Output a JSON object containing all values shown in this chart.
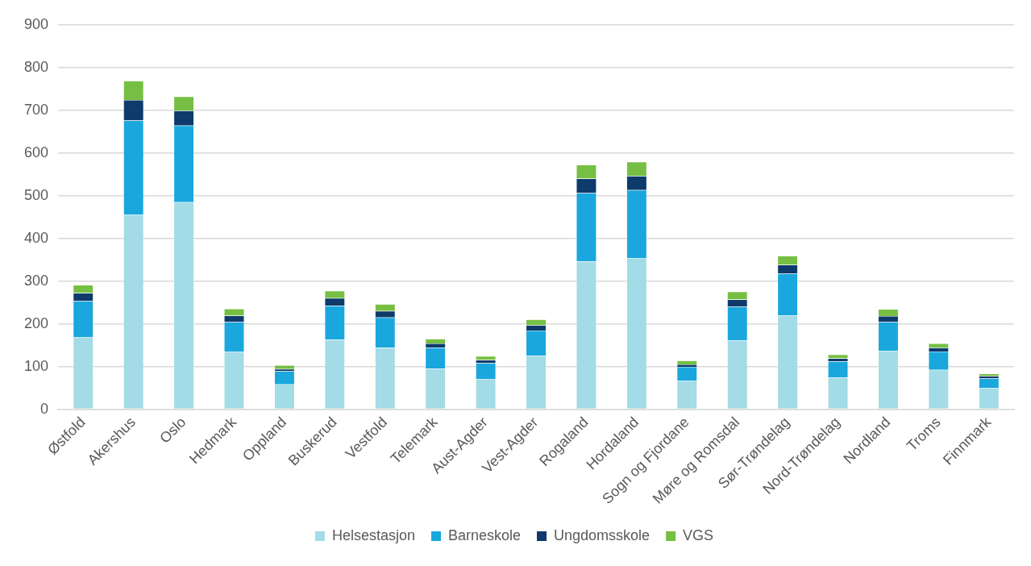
{
  "chart_data": {
    "type": "bar",
    "stacked": true,
    "categories": [
      "Østfold",
      "Akershus",
      "Oslo",
      "Hedmark",
      "Oppland",
      "Buskerud",
      "Vestfold",
      "Telemark",
      "Aust-Agder",
      "Vest-Agder",
      "Rogaland",
      "Hordaland",
      "Sogn og Fjordane",
      "Møre og Romsdal",
      "Sør-Trøndelag",
      "Nord-Trøndelag",
      "Nordland",
      "Troms",
      "Finnmark"
    ],
    "series": [
      {
        "name": "Helsestasjon",
        "color": "#a3dbe6",
        "values": [
          169,
          456,
          485,
          135,
          58,
          163,
          144,
          95,
          71,
          125,
          346,
          354,
          67,
          161,
          219,
          74,
          137,
          92,
          49
        ]
      },
      {
        "name": "Barneskole",
        "color": "#1aa7de",
        "values": [
          84,
          220,
          179,
          69,
          31,
          79,
          71,
          49,
          37,
          59,
          160,
          159,
          32,
          79,
          98,
          38,
          67,
          43,
          23
        ]
      },
      {
        "name": "Ungdomsskole",
        "color": "#0e3b6b",
        "values": [
          19,
          48,
          35,
          15,
          5,
          18,
          15,
          10,
          7,
          13,
          34,
          33,
          6,
          17,
          21,
          7,
          14,
          9,
          6
        ]
      },
      {
        "name": "VGS",
        "color": "#76bf43",
        "values": [
          19,
          45,
          33,
          16,
          9,
          17,
          16,
          11,
          9,
          13,
          32,
          33,
          9,
          18,
          21,
          9,
          16,
          10,
          5
        ]
      }
    ],
    "ylim": [
      0,
      900
    ],
    "yticks": [
      0,
      100,
      200,
      300,
      400,
      500,
      600,
      700,
      800,
      900
    ],
    "grid": "y",
    "legend": "bottom"
  }
}
